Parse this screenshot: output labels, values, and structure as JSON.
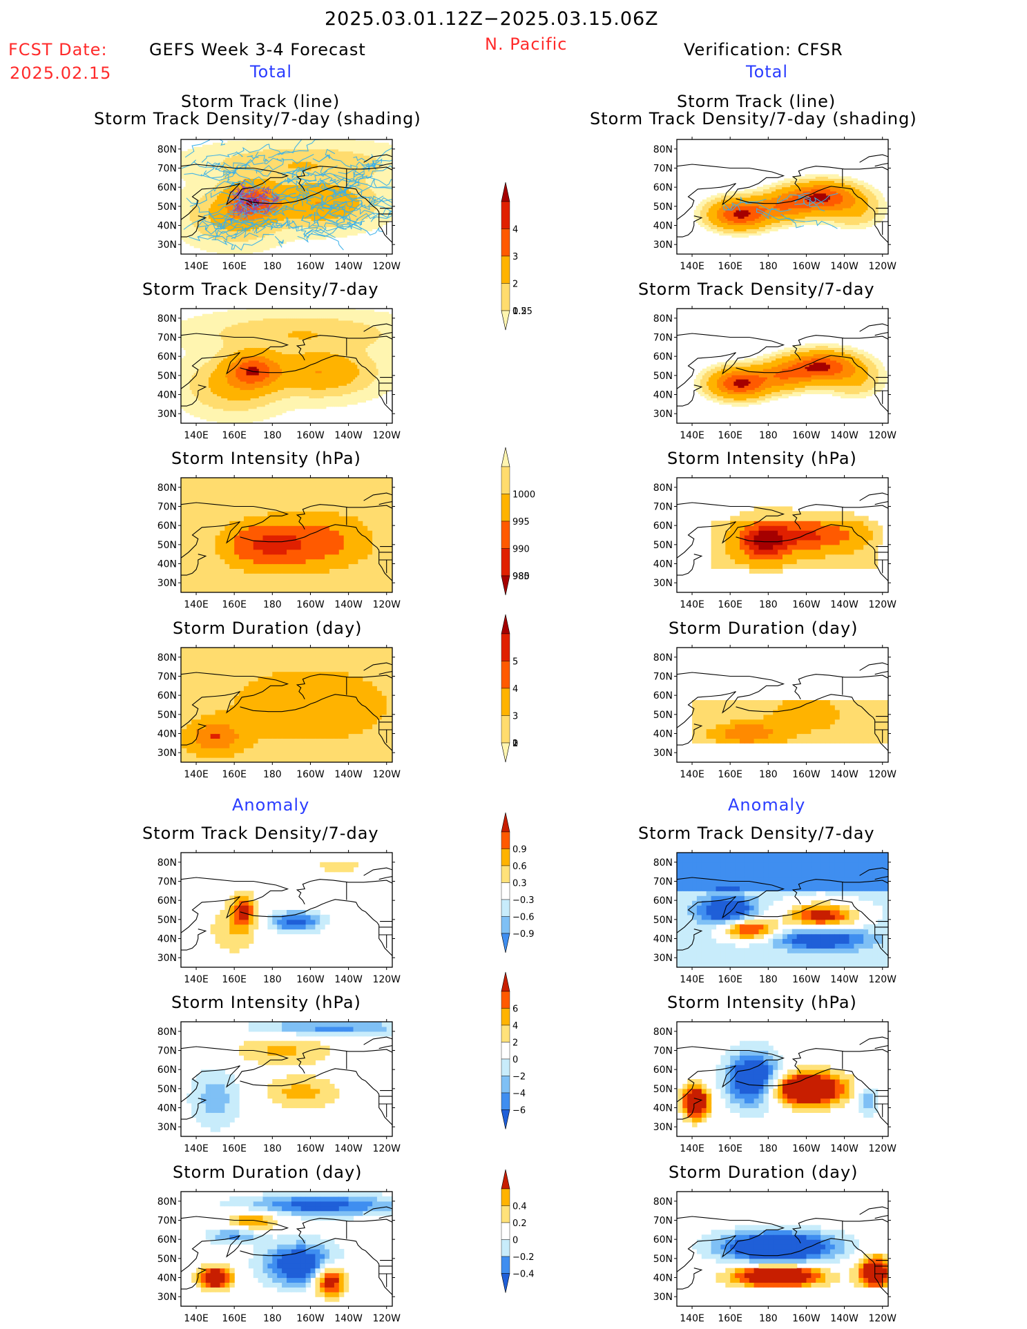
{
  "header": {
    "date_range": "2025.03.01.12Z−2025.03.15.06Z",
    "fcst_label": "FCST Date:",
    "fcst_date": "2025.02.15",
    "forecast_title": "GEFS Week 3-4 Forecast",
    "region": "N. Pacific",
    "verification_title": "Verification: CFSR"
  },
  "sections": {
    "total": "Total",
    "anomaly": "Anomaly"
  },
  "panel_titles": {
    "track_line": "Storm Track (line)",
    "track_shading": "Storm Track Density/7-day (shading)",
    "density": "Storm Track Density/7-day",
    "intensity": "Storm Intensity (hPa)",
    "duration": "Storm Duration (day)"
  },
  "axes": {
    "lon_labels": [
      "140E",
      "160E",
      "180",
      "160W",
      "140W",
      "120W"
    ],
    "lat_labels": [
      "80N",
      "70N",
      "60N",
      "50N",
      "40N",
      "30N"
    ]
  },
  "colorbars": {
    "density_total": [
      "4",
      "3",
      "2",
      "1",
      "0.5",
      "0.25"
    ],
    "intensity_total": [
      "1000",
      "995",
      "990",
      "985",
      "980"
    ],
    "duration_total": [
      "5",
      "4",
      "3",
      "2",
      "1",
      "0"
    ],
    "density_anom": [
      "0.9",
      "0.6",
      "0.3",
      "−0.3",
      "−0.6",
      "−0.9"
    ],
    "intensity_anom": [
      "6",
      "4",
      "2",
      "0",
      "−2",
      "−4",
      "−6"
    ],
    "duration_anom": [
      "0.4",
      "0.2",
      "0",
      "−0.2",
      "−0.4"
    ]
  },
  "colors": {
    "red_text": "#ff2a2a",
    "blue_text": "#2a3cff",
    "warm_scale": [
      "#fff5b0",
      "#ffdc6e",
      "#ffb300",
      "#ff8a00",
      "#ff5a00",
      "#e02000",
      "#a50000"
    ],
    "diverging_scale": [
      "#1f5fd8",
      "#3f8ef0",
      "#7fc0f5",
      "#c8ecfb",
      "#ffffff",
      "#ffe27a",
      "#ffb300",
      "#ff5a00",
      "#c81e00"
    ],
    "track_line": "#3ab0e8"
  }
}
